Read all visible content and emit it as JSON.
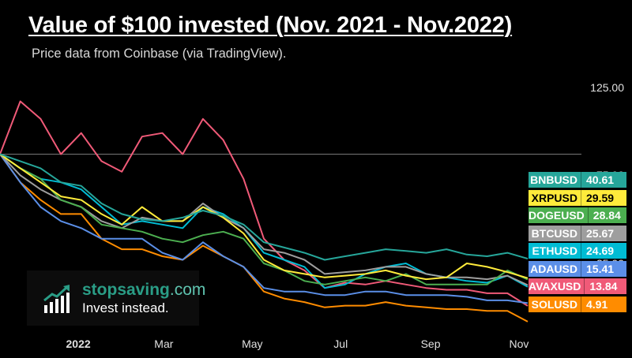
{
  "title": "Value of $100 invested (Nov. 2021 - Nov.2022)",
  "subtitle": "Price data from Coinbase (via TradingView).",
  "brand": {
    "name_bold": "stopsaving",
    "name_light": ".com",
    "tagline": "Invest instead."
  },
  "chart_data": {
    "type": "line",
    "title": "Value of $100 invested (Nov. 2021 - Nov.2022)",
    "subtitle": "Price data from Coinbase (via TradingView).",
    "xlabel": "",
    "ylabel": "",
    "x_ticks": [
      "2022",
      "Mar",
      "May",
      "Jul",
      "Sep",
      "Nov"
    ],
    "y_ticks": [
      "125.00",
      "75.00",
      "25.00"
    ],
    "ylim": [
      -5,
      145
    ],
    "reference_line": 100,
    "legend_position": "right",
    "x": [
      "2021-11-08",
      "2021-11-22",
      "2021-12-06",
      "2021-12-20",
      "2022-01-03",
      "2022-01-17",
      "2022-01-31",
      "2022-02-14",
      "2022-02-28",
      "2022-03-14",
      "2022-03-28",
      "2022-04-11",
      "2022-04-25",
      "2022-05-09",
      "2022-05-23",
      "2022-06-06",
      "2022-06-20",
      "2022-07-04",
      "2022-07-18",
      "2022-08-01",
      "2022-08-15",
      "2022-08-29",
      "2022-09-12",
      "2022-09-26",
      "2022-10-10",
      "2022-10-24",
      "2022-11-07"
    ],
    "series": [
      {
        "name": "BNBUSD",
        "color": "#26a69a",
        "last": "40.61",
        "values": [
          100,
          96,
          92,
          84,
          82,
          72,
          66,
          63,
          62,
          64,
          68,
          65,
          60,
          50,
          47,
          44,
          40,
          42,
          44,
          46,
          45,
          44,
          46,
          43,
          42,
          44,
          40.61
        ]
      },
      {
        "name": "XRPUSD",
        "color": "#ffeb3b",
        "last": "29.59",
        "values": [
          100,
          92,
          84,
          76,
          74,
          66,
          60,
          70,
          62,
          62,
          70,
          64,
          55,
          40,
          34,
          32,
          30,
          31,
          32,
          34,
          31,
          29,
          30,
          38,
          36,
          33,
          29.59
        ]
      },
      {
        "name": "DOGEUSD",
        "color": "#4caf50",
        "last": "28.84",
        "values": [
          100,
          92,
          86,
          74,
          70,
          60,
          58,
          56,
          52,
          50,
          54,
          56,
          52,
          38,
          34,
          28,
          26,
          28,
          30,
          28,
          32,
          26,
          26,
          26,
          26,
          34,
          28.84
        ]
      },
      {
        "name": "BTCUSD",
        "color": "#9e9e9e",
        "last": "25.67",
        "values": [
          100,
          88,
          80,
          74,
          70,
          62,
          58,
          64,
          62,
          62,
          72,
          64,
          58,
          46,
          44,
          40,
          32,
          33,
          34,
          36,
          36,
          32,
          30,
          30,
          29,
          31,
          25.67
        ]
      },
      {
        "name": "ETHUSD",
        "color": "#00bcd4",
        "last": "24.69",
        "values": [
          100,
          92,
          86,
          84,
          80,
          70,
          60,
          62,
          60,
          58,
          70,
          66,
          58,
          44,
          40,
          36,
          24,
          26,
          32,
          36,
          38,
          32,
          30,
          28,
          27,
          31,
          24.69
        ]
      },
      {
        "name": "ADAUSD",
        "color": "#5b8fe8",
        "last": "15.41",
        "values": [
          100,
          84,
          70,
          62,
          58,
          52,
          52,
          52,
          44,
          40,
          50,
          42,
          36,
          24,
          22,
          22,
          20,
          20,
          22,
          22,
          20,
          20,
          20,
          19,
          17,
          17,
          15.41
        ]
      },
      {
        "name": "AVAXUSD",
        "color": "#f05a78",
        "last": "13.84",
        "values": [
          100,
          130,
          120,
          100,
          112,
          96,
          90,
          110,
          112,
          100,
          120,
          108,
          86,
          52,
          40,
          34,
          24,
          27,
          26,
          28,
          26,
          24,
          23,
          23,
          21,
          21,
          13.84
        ]
      },
      {
        "name": "SOLUSD",
        "color": "#ff8c00",
        "last": "4.91",
        "values": [
          100,
          84,
          74,
          66,
          66,
          52,
          46,
          46,
          42,
          40,
          48,
          42,
          36,
          22,
          18,
          16,
          13,
          14,
          14,
          16,
          14,
          13,
          12,
          12,
          11,
          11,
          4.91
        ]
      }
    ]
  }
}
